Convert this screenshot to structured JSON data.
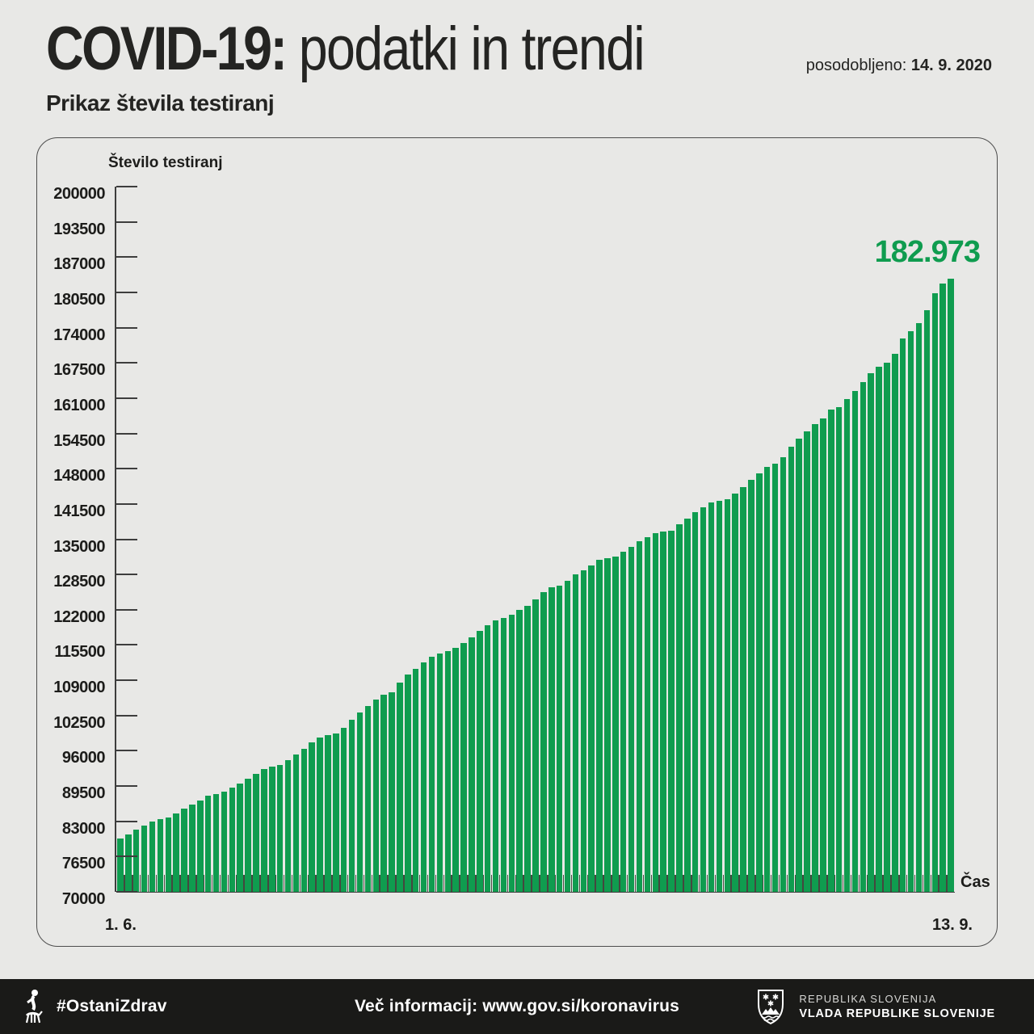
{
  "header": {
    "title_bold": "COVID-19:",
    "title_rest": " podatki in trendi",
    "updated_label": "posodobljeno: ",
    "updated_date": "14. 9. 2020",
    "subtitle": "Prikaz števila testiranj"
  },
  "chart": {
    "axis_title": "Število testiranj",
    "time_axis_label": "Čas",
    "x_start_label": "1. 6.",
    "x_end_label": "13. 9.",
    "peak_label": "182.973"
  },
  "colors": {
    "bar_green": "#0f9c4f",
    "peak_label_green": "#0f9c4f",
    "background_gray": "#e8e8e6",
    "footer_black": "#1a1a18",
    "axis_dark": "#3d3d3d"
  },
  "chart_data": {
    "type": "bar",
    "title": "Prikaz števila testiranj",
    "ylabel": "Število testiranj",
    "xlabel": "Čas",
    "ylim": [
      70000,
      200000
    ],
    "ytick_step": 6500,
    "yticks": [
      70000,
      76500,
      83000,
      89500,
      96000,
      102500,
      109000,
      115500,
      122000,
      128500,
      135000,
      141500,
      148000,
      154500,
      161000,
      167500,
      174000,
      180500,
      187000,
      193500,
      200000
    ],
    "x_range_labels": [
      "1. 6.",
      "13. 9."
    ],
    "annotation": "182.973",
    "annotation_value": 182973,
    "legend": [],
    "grid": false,
    "values": [
      79800,
      80600,
      81400,
      82200,
      83000,
      83400,
      83700,
      84500,
      85300,
      86100,
      86900,
      87700,
      88100,
      88400,
      89200,
      90000,
      90900,
      91800,
      92700,
      93100,
      93400,
      94300,
      95330,
      96420,
      97510,
      98400,
      98910,
      99200,
      100300,
      101790,
      103030,
      104280,
      105520,
      106370,
      106770,
      108510,
      110000,
      111100,
      112230,
      113330,
      113980,
      114330,
      115000,
      115820,
      116970,
      118110,
      119210,
      120100,
      120450,
      121090,
      121940,
      122790,
      123930,
      125180,
      126080,
      126430,
      127400,
      128500,
      129300,
      130150,
      131150,
      131540,
      131740,
      132640,
      133630,
      134630,
      135370,
      136120,
      136370,
      136620,
      137710,
      138850,
      140000,
      140940,
      141840,
      142090,
      142340,
      143480,
      144670,
      145920,
      147160,
      148310,
      148900,
      150100,
      152000,
      153500,
      154900,
      156260,
      157250,
      158900,
      159390,
      160890,
      162380,
      163970,
      165560,
      166860,
      167560,
      169200,
      171940,
      173330,
      174780,
      177150,
      180380,
      182120,
      182973
    ]
  },
  "footer": {
    "hashtag": "#OstaniZdrav",
    "info": "Več informacij: www.gov.si/koronavirus",
    "gov_line1": "REPUBLIKA SLOVENIJA",
    "gov_line2": "VLADA REPUBLIKE SLOVENIJE"
  }
}
